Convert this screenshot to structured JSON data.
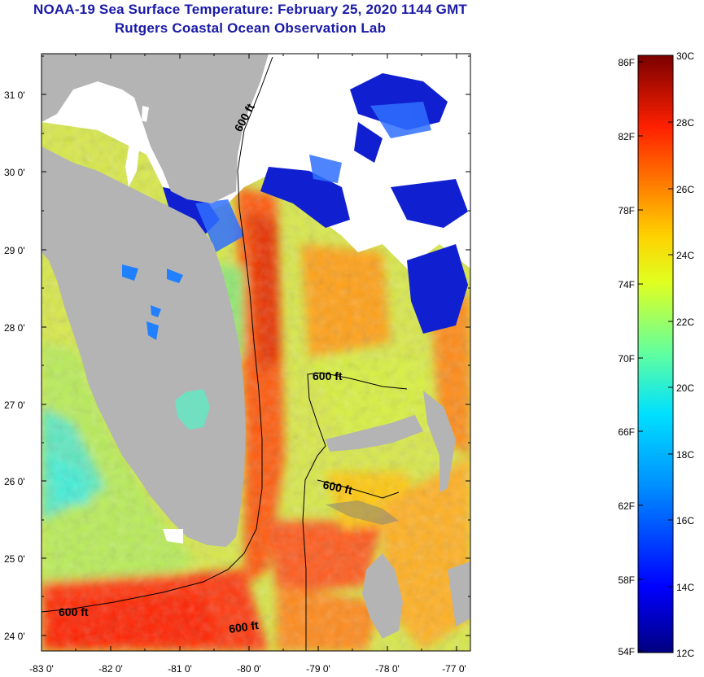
{
  "title": "NOAA-19 Sea Surface Temperature:  February 25, 2020 1144 GMT",
  "subtitle": "Rutgers Coastal Ocean Observation Lab",
  "map": {
    "lon_range": [
      -83,
      -76.83
    ],
    "lat_range": [
      23.8,
      31.45
    ],
    "lat_labels": [
      "24 0'",
      "25 0'",
      "26 0'",
      "27 0'",
      "28 0'",
      "29 0'",
      "30 0'",
      "31 0'"
    ],
    "lon_labels": [
      "-83 0'",
      "-82 0'",
      "-81 0'",
      "-80 0'",
      "-79 0'",
      "-78 0'",
      "-77 0'"
    ],
    "contour_labels": [
      "600 ft",
      "600 ft",
      "600 ft",
      "600 ft",
      "600 ft"
    ],
    "colors": {
      "land": "#b4b4b4",
      "cloud": "#ffffff"
    }
  },
  "colorbar": {
    "fahrenheit_labels": [
      "86F",
      "82F",
      "78F",
      "74F",
      "70F",
      "66F",
      "62F",
      "58F",
      "54F"
    ],
    "celsius_labels": [
      "30C",
      "28C",
      "26C",
      "24C",
      "22C",
      "20C",
      "18C",
      "16C",
      "14C",
      "12C"
    ],
    "colors": [
      "#000080",
      "#0000ff",
      "#0080ff",
      "#00ffff",
      "#80ff80",
      "#ffff00",
      "#ff8000",
      "#ff0000",
      "#800000"
    ]
  }
}
